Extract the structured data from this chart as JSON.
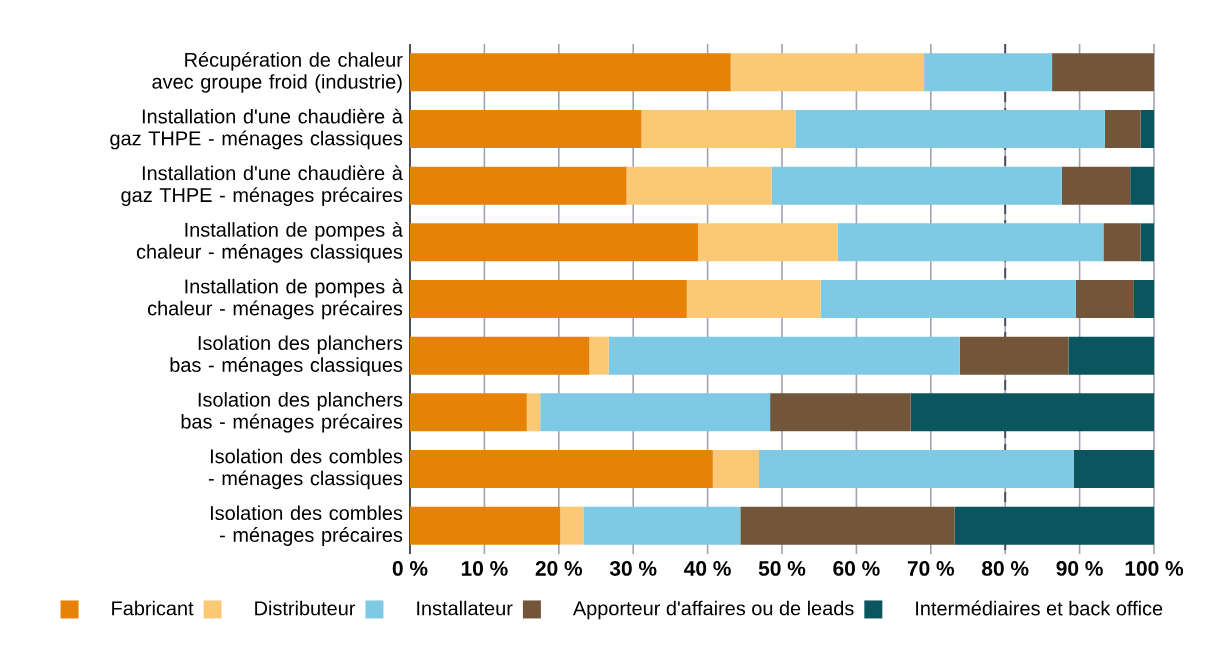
{
  "chart_data": {
    "type": "bar",
    "orientation": "horizontal",
    "stacked": true,
    "categories": [
      "Récupération de chaleur avec groupe froid (industrie)",
      "Installation d'une chaudière à gaz THPE - ménages classiques",
      "Installation d'une chaudière à gaz THPE - ménages précaires",
      "Installation de pompes à chaleur - ménages classiques",
      "Installation de pompes à chaleur - ménages précaires",
      "Isolation des planchers bas - ménages classiques",
      "Isolation des planchers bas - ménages précaires",
      "Isolation des combles - ménages classiques",
      "Isolation des combles - ménages précaires"
    ],
    "series": [
      {
        "name": "Fabricant",
        "color": "#e58207",
        "values": [
          43.1,
          31.1,
          29.1,
          38.7,
          37.2,
          24.1,
          15.7,
          40.7,
          20.2
        ]
      },
      {
        "name": "Distributeur",
        "color": "#fbc876",
        "values": [
          26.0,
          20.7,
          19.5,
          18.8,
          18.0,
          2.6,
          1.8,
          6.2,
          3.1
        ]
      },
      {
        "name": "Installateur",
        "color": "#7ecae5",
        "values": [
          17.2,
          41.6,
          39.0,
          35.7,
          34.3,
          47.2,
          30.9,
          42.3,
          21.1
        ]
      },
      {
        "name": "Apporteur d'affaires ou de leads",
        "color": "#73553a",
        "values": [
          13.7,
          4.8,
          9.2,
          5.0,
          7.8,
          14.6,
          18.9,
          0,
          28.8
        ]
      },
      {
        "name": "Intermédiaires et back office",
        "color": "#0a555e",
        "values": [
          0,
          1.8,
          3.2,
          1.8,
          2.7,
          11.5,
          32.7,
          10.8,
          26.8
        ]
      }
    ],
    "xlim": [
      0,
      100
    ],
    "xticks": [
      {
        "value": 0,
        "label": "0 %"
      },
      {
        "value": 10,
        "label": "10 %"
      },
      {
        "value": 20,
        "label": "20 %"
      },
      {
        "value": 30,
        "label": "30 %"
      },
      {
        "value": 40,
        "label": "40 %"
      },
      {
        "value": 50,
        "label": "50 %"
      },
      {
        "value": 60,
        "label": "60 %"
      },
      {
        "value": 70,
        "label": "70 %"
      },
      {
        "value": 80,
        "label": "80 %"
      },
      {
        "value": 90,
        "label": "90 %"
      },
      {
        "value": 100,
        "label": "100 %"
      }
    ],
    "grid": "x",
    "legend": "bottom",
    "ref_lines": [
      {
        "axis": "x",
        "value": 80,
        "color": "#4a4f5c",
        "line_style": "dashed"
      }
    ]
  }
}
